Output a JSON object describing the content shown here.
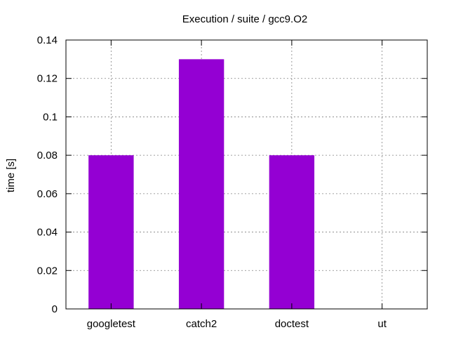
{
  "chart_data": {
    "type": "bar",
    "title": "Execution / suite / gcc9.O2",
    "xlabel": "",
    "ylabel": "time [s]",
    "categories": [
      "googletest",
      "catch2",
      "doctest",
      "ut"
    ],
    "values": [
      0.08,
      0.13,
      0.08,
      0
    ],
    "ylim": [
      0,
      0.14
    ],
    "yticks": [
      0,
      0.02,
      0.04,
      0.06,
      0.08,
      0.1,
      0.12,
      0.14
    ],
    "ytick_labels": [
      "0",
      "0.02",
      "0.04",
      "0.06",
      "0.08",
      "0.1",
      "0.12",
      "0.14"
    ],
    "grid": true,
    "legend": "none",
    "bar_color": "#9400d3"
  }
}
